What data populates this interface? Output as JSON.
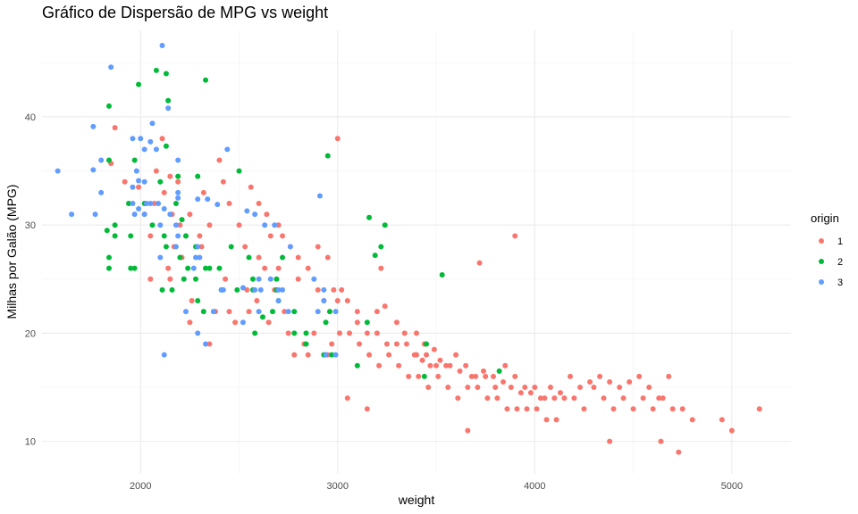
{
  "chart_data": {
    "type": "scatter",
    "title": "Gráfico de Dispersão de MPG vs weight",
    "xlabel": "weight",
    "ylabel": "Milhas por Galão (MPG)",
    "xlim": [
      1500,
      5300
    ],
    "ylim": [
      7,
      48
    ],
    "x_ticks": [
      2000,
      3000,
      4000,
      5000
    ],
    "y_ticks": [
      10,
      20,
      30,
      40
    ],
    "grid": true,
    "legend": {
      "title": "origin",
      "position": "right"
    },
    "series": [
      {
        "name": "1",
        "color": "#F8766D",
        "points": [
          [
            1870,
            39
          ],
          [
            1850,
            35.7
          ],
          [
            1920,
            34
          ],
          [
            1990,
            33.5
          ],
          [
            2020,
            31
          ],
          [
            2050,
            29
          ],
          [
            2070,
            32
          ],
          [
            2110,
            38
          ],
          [
            2120,
            33
          ],
          [
            2150,
            34.5
          ],
          [
            2160,
            31
          ],
          [
            2190,
            34
          ],
          [
            2200,
            30
          ],
          [
            2230,
            29
          ],
          [
            2250,
            31
          ],
          [
            2300,
            29
          ],
          [
            2320,
            33
          ],
          [
            2350,
            30
          ],
          [
            2400,
            36
          ],
          [
            2420,
            34
          ],
          [
            2450,
            32
          ],
          [
            2500,
            30
          ],
          [
            2530,
            28
          ],
          [
            2560,
            33.5
          ],
          [
            2600,
            32
          ],
          [
            2640,
            31
          ],
          [
            2660,
            29
          ],
          [
            2700,
            30
          ],
          [
            2720,
            29
          ],
          [
            2760,
            28
          ],
          [
            2800,
            27
          ],
          [
            2850,
            26
          ],
          [
            2900,
            28
          ],
          [
            2950,
            27
          ],
          [
            2980,
            24
          ],
          [
            3000,
            38
          ],
          [
            3020,
            24
          ],
          [
            3050,
            23
          ],
          [
            3100,
            21
          ],
          [
            3150,
            20
          ],
          [
            3200,
            20
          ],
          [
            3250,
            19
          ],
          [
            3300,
            19
          ],
          [
            3350,
            19
          ],
          [
            3400,
            18
          ],
          [
            3450,
            18
          ],
          [
            3500,
            17
          ],
          [
            3550,
            17
          ],
          [
            3600,
            18
          ],
          [
            3650,
            17
          ],
          [
            3700,
            16
          ],
          [
            3720,
            26.5
          ],
          [
            3750,
            16
          ],
          [
            3800,
            15
          ],
          [
            3850,
            17
          ],
          [
            3900,
            16
          ],
          [
            3950,
            15
          ],
          [
            4000,
            15
          ],
          [
            4050,
            14
          ],
          [
            4100,
            14
          ],
          [
            4150,
            14
          ],
          [
            4200,
            14
          ],
          [
            4250,
            13
          ],
          [
            4300,
            15
          ],
          [
            4350,
            14
          ],
          [
            4400,
            13
          ],
          [
            4450,
            14
          ],
          [
            4500,
            13
          ],
          [
            4550,
            14
          ],
          [
            4600,
            13
          ],
          [
            4650,
            14
          ],
          [
            4700,
            13
          ],
          [
            4750,
            13
          ],
          [
            4800,
            12
          ],
          [
            4950,
            12
          ],
          [
            5000,
            11
          ],
          [
            5140,
            13
          ],
          [
            4380,
            10
          ],
          [
            4640,
            10
          ],
          [
            4730,
            9
          ],
          [
            3660,
            11
          ],
          [
            3150,
            13
          ],
          [
            3050,
            14
          ],
          [
            2950,
            18
          ],
          [
            2850,
            18
          ],
          [
            2750,
            20
          ],
          [
            2650,
            21
          ],
          [
            2550,
            22
          ],
          [
            2450,
            22
          ],
          [
            2350,
            19
          ],
          [
            2250,
            21
          ],
          [
            2150,
            25
          ],
          [
            2050,
            25
          ],
          [
            2080,
            35
          ],
          [
            2140,
            26
          ],
          [
            2170,
            28
          ],
          [
            2210,
            27
          ],
          [
            2260,
            23
          ],
          [
            2310,
            28
          ],
          [
            2380,
            22
          ],
          [
            2430,
            25
          ],
          [
            2480,
            21
          ],
          [
            2540,
            24
          ],
          [
            2590,
            23
          ],
          [
            2630,
            26
          ],
          [
            2680,
            24
          ],
          [
            2730,
            22
          ],
          [
            2780,
            18
          ],
          [
            2830,
            19
          ],
          [
            2880,
            20
          ],
          [
            2930,
            23
          ],
          [
            2970,
            19
          ],
          [
            3010,
            20
          ],
          [
            3060,
            20
          ],
          [
            3110,
            19
          ],
          [
            3160,
            18
          ],
          [
            3210,
            17
          ],
          [
            3260,
            18
          ],
          [
            3310,
            17
          ],
          [
            3360,
            16
          ],
          [
            3410,
            16
          ],
          [
            3460,
            15
          ],
          [
            3510,
            16
          ],
          [
            3560,
            15
          ],
          [
            3610,
            14
          ],
          [
            3660,
            15
          ],
          [
            3710,
            15
          ],
          [
            3760,
            14
          ],
          [
            3810,
            14
          ],
          [
            3860,
            13
          ],
          [
            3910,
            13
          ],
          [
            3960,
            13
          ],
          [
            4010,
            13
          ],
          [
            4060,
            12
          ],
          [
            4110,
            12
          ],
          [
            3900,
            29
          ],
          [
            3440,
            19
          ],
          [
            3490,
            18.5
          ],
          [
            3240,
            22.5
          ],
          [
            3220,
            26
          ],
          [
            3340,
            20
          ],
          [
            3390,
            18
          ],
          [
            3430,
            17.5
          ],
          [
            3470,
            17
          ],
          [
            3520,
            17.5
          ],
          [
            3570,
            17
          ],
          [
            3620,
            16.5
          ],
          [
            3680,
            16
          ],
          [
            3740,
            16.5
          ],
          [
            3790,
            16
          ],
          [
            3840,
            15.5
          ],
          [
            3880,
            15
          ],
          [
            3930,
            14.5
          ],
          [
            3980,
            14.5
          ],
          [
            4030,
            14
          ],
          [
            4080,
            15
          ],
          [
            4130,
            14.5
          ],
          [
            4180,
            16
          ],
          [
            4230,
            15
          ],
          [
            4280,
            15.5
          ],
          [
            4330,
            16
          ],
          [
            4380,
            15.5
          ],
          [
            4430,
            15
          ],
          [
            4480,
            15.5
          ],
          [
            4530,
            16
          ],
          [
            4580,
            15
          ],
          [
            4630,
            14
          ],
          [
            4680,
            16
          ],
          [
            2600,
            27
          ],
          [
            2700,
            26
          ],
          [
            2800,
            25
          ],
          [
            2900,
            24
          ],
          [
            3000,
            23
          ],
          [
            3100,
            22
          ],
          [
            3200,
            22
          ],
          [
            3300,
            21
          ],
          [
            3400,
            20
          ]
        ]
      },
      {
        "name": "2",
        "color": "#00BA38",
        "points": [
          [
            1840,
            41
          ],
          [
            1990,
            43
          ],
          [
            2080,
            44.3
          ],
          [
            2130,
            44
          ],
          [
            2140,
            41.5
          ],
          [
            2330,
            43.4
          ],
          [
            2130,
            37.3
          ],
          [
            1840,
            36
          ],
          [
            1970,
            36
          ],
          [
            2500,
            35
          ],
          [
            2950,
            36.4
          ],
          [
            2100,
            34
          ],
          [
            2190,
            34.5
          ],
          [
            2290,
            34.5
          ],
          [
            2020,
            32
          ],
          [
            2180,
            32
          ],
          [
            1940,
            32
          ],
          [
            1870,
            30
          ],
          [
            2060,
            30
          ],
          [
            2210,
            30.5
          ],
          [
            3160,
            30.7
          ],
          [
            3240,
            30
          ],
          [
            3220,
            28
          ],
          [
            3190,
            27.2
          ],
          [
            1830,
            29.5
          ],
          [
            1870,
            29
          ],
          [
            1950,
            29
          ],
          [
            2120,
            29
          ],
          [
            2230,
            29
          ],
          [
            2130,
            28
          ],
          [
            2280,
            28
          ],
          [
            2460,
            28
          ],
          [
            2550,
            27
          ],
          [
            1840,
            27
          ],
          [
            2200,
            27
          ],
          [
            2240,
            26
          ],
          [
            1840,
            26
          ],
          [
            1970,
            26
          ],
          [
            2330,
            26
          ],
          [
            2280,
            25
          ],
          [
            2220,
            25
          ],
          [
            2570,
            25
          ],
          [
            2690,
            25
          ],
          [
            2160,
            24
          ],
          [
            2410,
            24
          ],
          [
            2690,
            24
          ],
          [
            2110,
            24
          ],
          [
            2290,
            23
          ],
          [
            2670,
            22
          ],
          [
            2780,
            22
          ],
          [
            2960,
            22
          ],
          [
            2940,
            21
          ],
          [
            2840,
            20
          ],
          [
            2580,
            20
          ],
          [
            2930,
            18
          ],
          [
            2970,
            18
          ],
          [
            2840,
            19
          ],
          [
            3100,
            17
          ],
          [
            3440,
            16
          ],
          [
            3450,
            19
          ],
          [
            3820,
            16.5
          ],
          [
            2780,
            20
          ],
          [
            3150,
            21
          ],
          [
            2620,
            21.5
          ],
          [
            2350,
            26
          ],
          [
            1950,
            26
          ],
          [
            3530,
            25.4
          ],
          [
            2400,
            26
          ],
          [
            2720,
            27
          ],
          [
            2570,
            24
          ],
          [
            2700,
            23
          ],
          [
            2490,
            24
          ],
          [
            2320,
            22
          ]
        ]
      },
      {
        "name": "3",
        "color": "#619CFF",
        "points": [
          [
            2110,
            46.6
          ],
          [
            1850,
            44.6
          ],
          [
            1760,
            39.1
          ],
          [
            1760,
            35.1
          ],
          [
            1800,
            36
          ],
          [
            2060,
            39.4
          ],
          [
            2140,
            40.8
          ],
          [
            1960,
            38
          ],
          [
            2000,
            38
          ],
          [
            2050,
            37.7
          ],
          [
            2080,
            37
          ],
          [
            2020,
            37
          ],
          [
            2440,
            37
          ],
          [
            2190,
            36
          ],
          [
            1980,
            35
          ],
          [
            1990,
            34.1
          ],
          [
            2020,
            34
          ],
          [
            1960,
            33.5
          ],
          [
            1800,
            33
          ],
          [
            2190,
            33
          ],
          [
            1580,
            35
          ],
          [
            1650,
            31
          ],
          [
            1770,
            31
          ],
          [
            1970,
            31
          ],
          [
            1990,
            31.5
          ],
          [
            2030,
            32
          ],
          [
            2050,
            32
          ],
          [
            1960,
            32
          ],
          [
            2090,
            32
          ],
          [
            2120,
            31.5
          ],
          [
            2190,
            32.5
          ],
          [
            2290,
            32.4
          ],
          [
            2340,
            32.4
          ],
          [
            2390,
            31.9
          ],
          [
            2540,
            31.3
          ],
          [
            2580,
            31
          ],
          [
            2630,
            30
          ],
          [
            2910,
            32.7
          ],
          [
            2150,
            31
          ],
          [
            2290,
            28
          ],
          [
            2100,
            27
          ],
          [
            2300,
            27
          ],
          [
            2190,
            29
          ],
          [
            2100,
            30
          ],
          [
            2180,
            28
          ],
          [
            2270,
            26
          ],
          [
            2410,
            24
          ],
          [
            2520,
            24.2
          ],
          [
            2580,
            24
          ],
          [
            2600,
            25
          ],
          [
            2660,
            25
          ],
          [
            2720,
            24
          ],
          [
            2930,
            24
          ],
          [
            2600,
            22
          ],
          [
            2700,
            23
          ],
          [
            2750,
            22
          ],
          [
            2900,
            22
          ],
          [
            2930,
            23
          ],
          [
            2990,
            22
          ],
          [
            2370,
            22
          ],
          [
            2230,
            22
          ],
          [
            2290,
            20
          ],
          [
            2120,
            18
          ],
          [
            2330,
            19
          ],
          [
            2610,
            24
          ],
          [
            2940,
            18
          ],
          [
            2990,
            18
          ],
          [
            2700,
            24
          ],
          [
            2520,
            21
          ],
          [
            2180,
            30
          ],
          [
            2280,
            27
          ],
          [
            2020,
            31
          ],
          [
            2420,
            24
          ],
          [
            2680,
            30
          ],
          [
            2760,
            28
          ],
          [
            2880,
            25
          ]
        ]
      }
    ]
  }
}
